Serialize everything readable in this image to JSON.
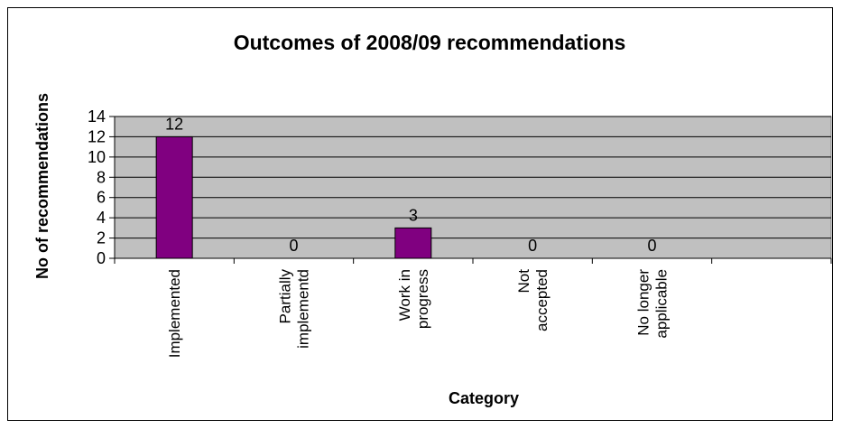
{
  "chart_data": {
    "type": "bar",
    "title": "Outcomes of 2008/09 recommendations",
    "xlabel": "Category",
    "ylabel": "No of recommendations",
    "categories": [
      [
        "Implemented"
      ],
      [
        "Partially",
        "implementd"
      ],
      [
        "Work in",
        "progress"
      ],
      [
        "Not",
        "accepted"
      ],
      [
        "No longer",
        "applicable"
      ]
    ],
    "values": [
      12,
      0,
      3,
      0,
      0
    ],
    "data_labels": [
      "12",
      "0",
      "3",
      "0",
      "0"
    ],
    "yticks": [
      "0",
      "2",
      "4",
      "6",
      "8",
      "10",
      "12",
      "14"
    ],
    "ylim": [
      0,
      14
    ],
    "grid": true,
    "colors": {
      "plot_bg": "#c0c0c0",
      "bar_fill": "#800080",
      "bar_stroke": "#000000",
      "grid": "#000000"
    }
  }
}
